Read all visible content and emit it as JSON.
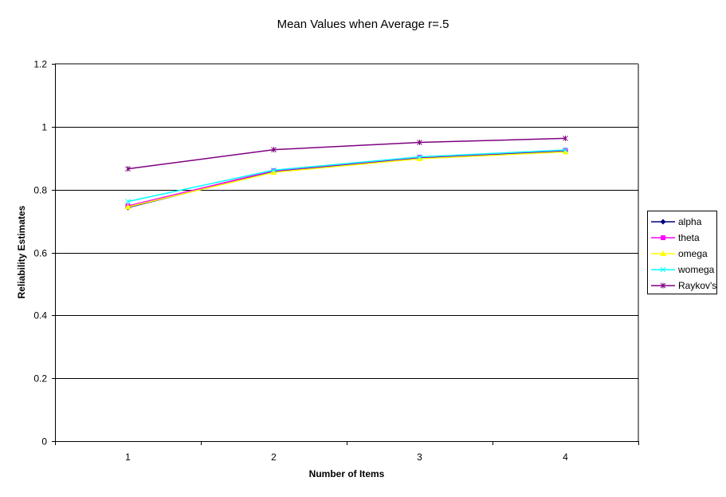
{
  "chart_data": {
    "type": "line",
    "title": "Mean Values when Average r=.5",
    "xlabel": "Number of Items",
    "ylabel": "Reliability Estimates",
    "categories": [
      "1",
      "2",
      "3",
      "4"
    ],
    "ylim": [
      0,
      1.2
    ],
    "yticks": [
      "0",
      "0.2",
      "0.4",
      "0.6",
      "0.8",
      "1",
      "1.2"
    ],
    "grid": true,
    "legend_position": "right",
    "series": [
      {
        "name": "alpha",
        "color": "#000080",
        "marker": "diamond",
        "values": [
          0.743,
          0.858,
          0.901,
          0.922
        ]
      },
      {
        "name": "theta",
        "color": "#FF00FF",
        "marker": "square",
        "values": [
          0.748,
          0.86,
          0.903,
          0.925
        ]
      },
      {
        "name": "omega",
        "color": "#FFFF00",
        "marker": "triangle",
        "values": [
          0.745,
          0.855,
          0.898,
          0.92
        ]
      },
      {
        "name": "womega",
        "color": "#00FFFF",
        "marker": "x",
        "values": [
          0.762,
          0.862,
          0.904,
          0.926
        ]
      },
      {
        "name": "Raykov's",
        "color": "#800080",
        "marker": "star",
        "values": [
          0.866,
          0.927,
          0.95,
          0.963
        ]
      }
    ]
  }
}
